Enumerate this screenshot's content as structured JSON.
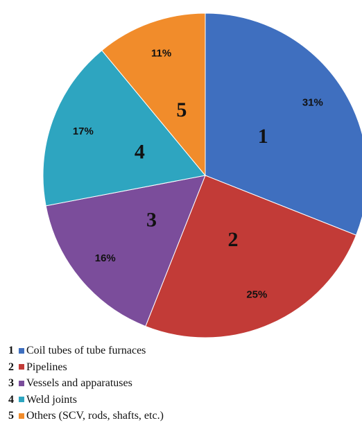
{
  "chart_data": {
    "type": "pie",
    "categories": [
      "1",
      "2",
      "3",
      "4",
      "5"
    ],
    "values": [
      31,
      25,
      16,
      17,
      11
    ],
    "value_labels": [
      "31%",
      "25%",
      "16%",
      "17%",
      "11%"
    ],
    "colors": [
      "#3f6fbf",
      "#c23b37",
      "#7b4d9b",
      "#2ea5c0",
      "#f18c2b"
    ],
    "start": "12 o'clock",
    "direction": "clockwise",
    "legend_position": "bottom-left",
    "legend": [
      {
        "num": "1",
        "label": "Coil tubes of tube furnaces"
      },
      {
        "num": "2",
        "label": "Pipelines"
      },
      {
        "num": "3",
        "label": "Vessels and apparatuses"
      },
      {
        "num": "4",
        "label": "Weld joints"
      },
      {
        "num": "5",
        "label": "Others (SCV, rods, shafts, etc.)"
      }
    ]
  }
}
